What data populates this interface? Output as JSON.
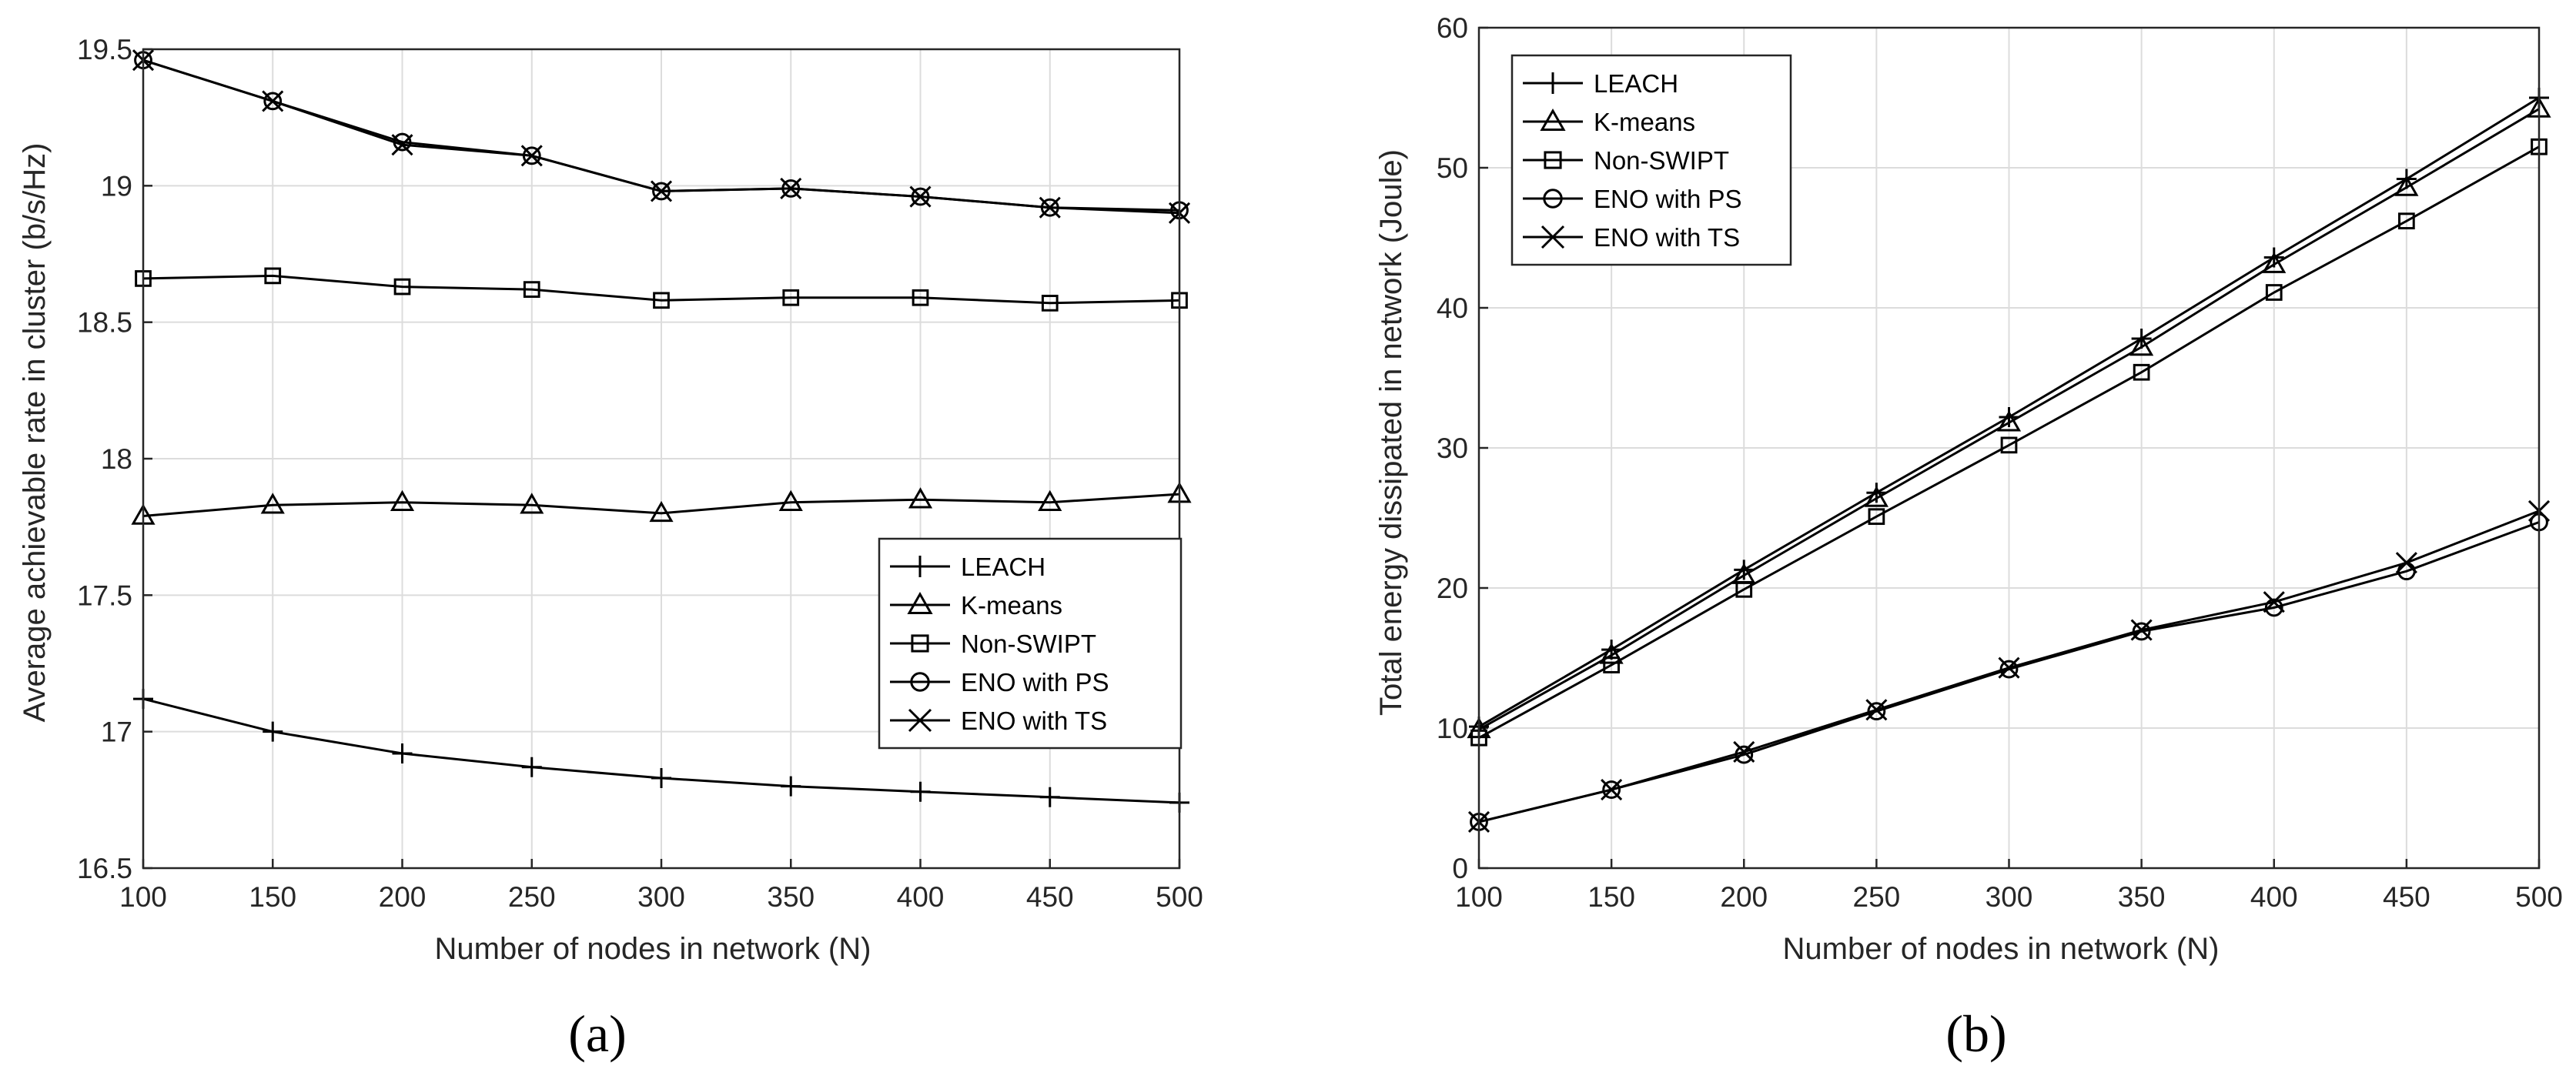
{
  "chart_data": [
    {
      "type": "line",
      "caption": "(a)",
      "xlabel": "Number of nodes in network (N)",
      "ylabel": "Average achievable rate in cluster (b/s/Hz)",
      "xlim": [
        100,
        500
      ],
      "ylim": [
        16.5,
        19.5
      ],
      "xticks": [
        100,
        150,
        200,
        250,
        300,
        350,
        400,
        450,
        500
      ],
      "yticks": [
        16.5,
        17,
        17.5,
        18,
        18.5,
        19,
        19.5
      ],
      "ytick_labels": [
        "16.5",
        "17",
        "17.5",
        "18",
        "18.5",
        "19",
        "19.5"
      ],
      "grid": true,
      "legend_position": "center-right",
      "x": [
        100,
        150,
        200,
        250,
        300,
        350,
        400,
        450,
        500
      ],
      "series": [
        {
          "name": "LEACH",
          "marker": "plus",
          "values": [
            17.12,
            17.0,
            16.92,
            16.87,
            16.83,
            16.8,
            16.78,
            16.76,
            16.74
          ]
        },
        {
          "name": "K-means",
          "marker": "triangle",
          "values": [
            17.79,
            17.83,
            17.84,
            17.83,
            17.8,
            17.84,
            17.85,
            17.84,
            17.87
          ]
        },
        {
          "name": "Non-SWIPT",
          "marker": "square",
          "values": [
            18.66,
            18.67,
            18.63,
            18.62,
            18.58,
            18.59,
            18.59,
            18.57,
            18.58
          ]
        },
        {
          "name": "ENO with PS",
          "marker": "circle",
          "values": [
            19.46,
            19.31,
            19.16,
            19.11,
            18.98,
            18.99,
            18.96,
            18.92,
            18.91
          ]
        },
        {
          "name": "ENO with TS",
          "marker": "x",
          "values": [
            19.46,
            19.31,
            19.15,
            19.11,
            18.98,
            18.99,
            18.96,
            18.92,
            18.9
          ]
        }
      ]
    },
    {
      "type": "line",
      "caption": "(b)",
      "xlabel": "Number of nodes in network (N)",
      "ylabel": "Total energy dissipated in network (Joule)",
      "xlim": [
        100,
        500
      ],
      "ylim": [
        0,
        60
      ],
      "xticks": [
        100,
        150,
        200,
        250,
        300,
        350,
        400,
        450,
        500
      ],
      "yticks": [
        0,
        10,
        20,
        30,
        40,
        50,
        60
      ],
      "ytick_labels": [
        "0",
        "10",
        "20",
        "30",
        "40",
        "50",
        "60"
      ],
      "grid": true,
      "legend_position": "top-left",
      "x": [
        100,
        150,
        200,
        250,
        300,
        350,
        400,
        450,
        500
      ],
      "series": [
        {
          "name": "LEACH",
          "marker": "plus",
          "values": [
            10.1,
            15.6,
            21.3,
            26.8,
            32.2,
            37.8,
            43.6,
            49.2,
            55.0
          ]
        },
        {
          "name": "K-means",
          "marker": "triangle",
          "values": [
            9.9,
            15.2,
            20.9,
            26.4,
            31.8,
            37.2,
            43.1,
            48.6,
            54.2
          ]
        },
        {
          "name": "Non-SWIPT",
          "marker": "square",
          "values": [
            9.3,
            14.5,
            19.9,
            25.1,
            30.2,
            35.4,
            41.1,
            46.2,
            51.5
          ]
        },
        {
          "name": "ENO with PS",
          "marker": "circle",
          "values": [
            3.3,
            5.6,
            8.1,
            11.2,
            14.2,
            16.9,
            18.6,
            21.2,
            24.7
          ]
        },
        {
          "name": "ENO with TS",
          "marker": "x",
          "values": [
            3.3,
            5.6,
            8.3,
            11.3,
            14.3,
            17.0,
            19.0,
            21.8,
            25.5
          ]
        }
      ]
    }
  ]
}
